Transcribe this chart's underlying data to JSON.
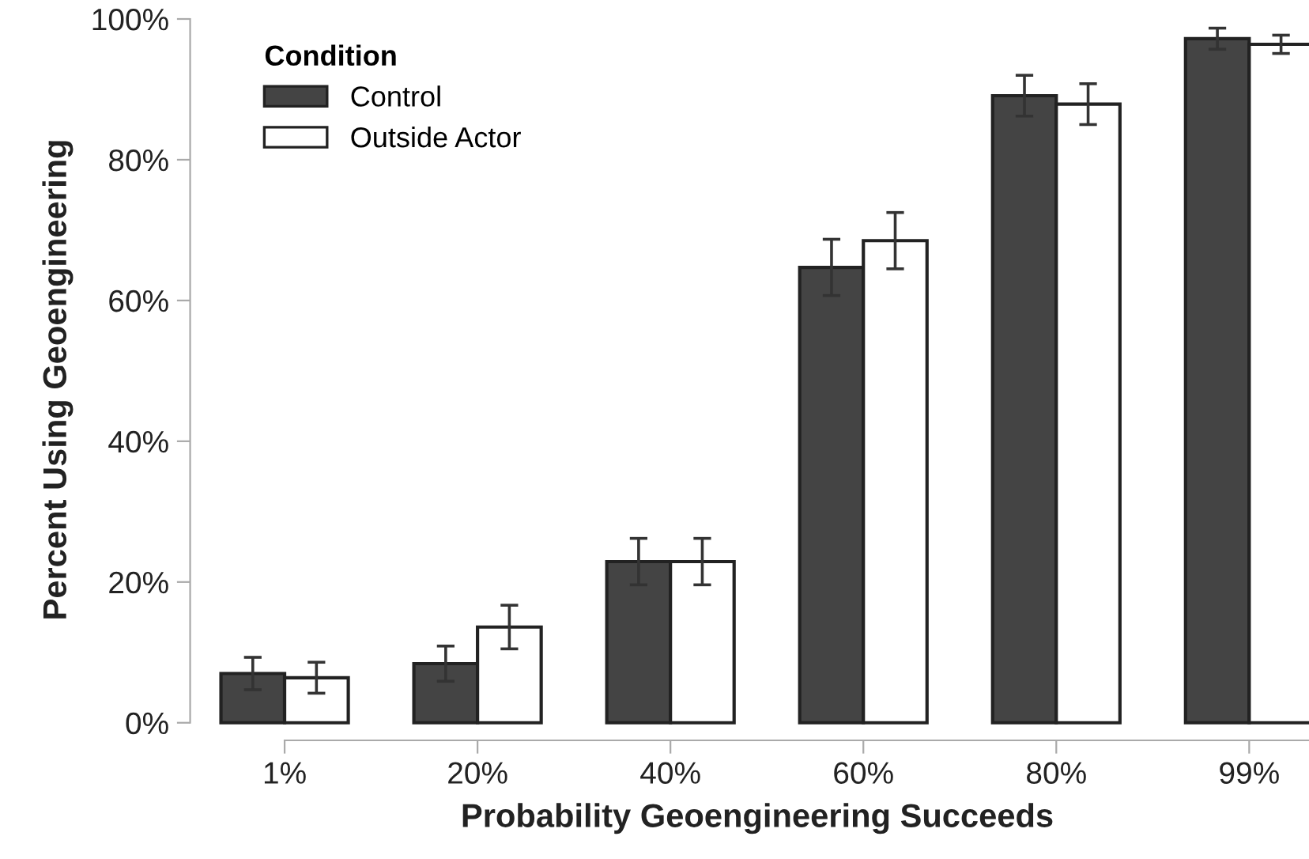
{
  "chart_data": {
    "type": "bar",
    "xlabel": "Probability Geoengineering Succeeds",
    "ylabel": "Percent Using Geoengineering",
    "legend_title": "Condition",
    "legend": "top left",
    "categories": [
      "1%",
      "20%",
      "40%",
      "60%",
      "80%",
      "99%"
    ],
    "series": [
      {
        "name": "Control",
        "color": "#444444",
        "values": [
          7.0,
          8.4,
          22.9,
          64.7,
          89.1,
          97.2
        ],
        "errors": [
          2.3,
          2.5,
          3.3,
          4.0,
          2.9,
          1.5
        ]
      },
      {
        "name": "Outside Actor",
        "color": "#ffffff",
        "values": [
          6.4,
          13.6,
          22.9,
          68.5,
          87.9,
          96.4
        ],
        "errors": [
          2.2,
          3.1,
          3.3,
          4.0,
          2.9,
          1.3
        ]
      }
    ],
    "ylim": [
      -2.5,
      100
    ],
    "yticks": [
      {
        "value": 0,
        "label": "0%"
      },
      {
        "value": 20,
        "label": "20%"
      },
      {
        "value": 40,
        "label": "40%"
      },
      {
        "value": 60,
        "label": "60%"
      },
      {
        "value": 80,
        "label": "80%"
      },
      {
        "value": 100,
        "label": "100%"
      }
    ],
    "grid": false
  }
}
